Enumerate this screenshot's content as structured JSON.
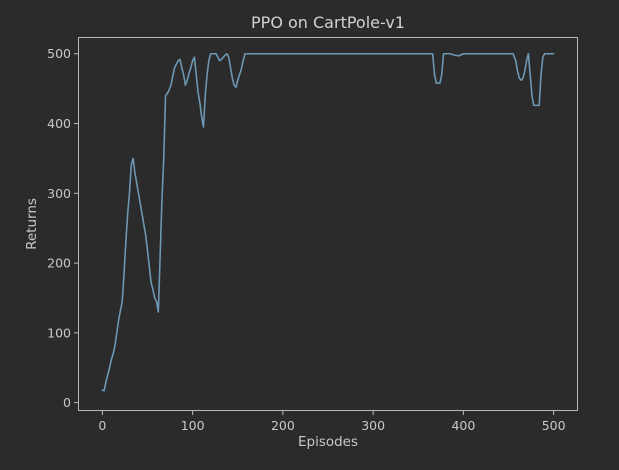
{
  "colors": {
    "background": "#2b2b2b",
    "plot_background": "#2b2b2b",
    "axes_frame": "#b9b9b9",
    "text": "#c8c8c8",
    "series_line": "#6d98b3"
  },
  "chart_data": {
    "type": "line",
    "title": "PPO on CartPole-v1",
    "xlabel": "Episodes",
    "ylabel": "Returns",
    "xlim": [
      -27,
      527
    ],
    "ylim": [
      -12,
      524
    ],
    "xticks": [
      0,
      100,
      200,
      300,
      400,
      500
    ],
    "yticks": [
      0,
      100,
      200,
      300,
      400,
      500
    ],
    "grid": false,
    "legend": "none",
    "series": [
      {
        "x": [
          0,
          2,
          4,
          6,
          8,
          10,
          12,
          14,
          16,
          18,
          20,
          22,
          24,
          26,
          28,
          30,
          32,
          34,
          36,
          38,
          40,
          42,
          44,
          46,
          48,
          50,
          52,
          54,
          56,
          58,
          60,
          62,
          64,
          66,
          68,
          70,
          72,
          74,
          76,
          78,
          80,
          82,
          84,
          86,
          88,
          90,
          92,
          94,
          96,
          98,
          100,
          102,
          104,
          106,
          108,
          110,
          112,
          114,
          116,
          118,
          120,
          122,
          124,
          126,
          128,
          130,
          132,
          134,
          136,
          138,
          140,
          142,
          144,
          146,
          148,
          150,
          152,
          154,
          156,
          158,
          160,
          162,
          164,
          166,
          168,
          170,
          200,
          250,
          300,
          350,
          366,
          368,
          370,
          372,
          374,
          376,
          378,
          380,
          382,
          385,
          390,
          395,
          400,
          420,
          440,
          455,
          458,
          460,
          462,
          464,
          466,
          468,
          470,
          472,
          474,
          476,
          478,
          480,
          482,
          484,
          486,
          488,
          490,
          495,
          500
        ],
        "values": [
          18,
          17,
          30,
          40,
          50,
          62,
          70,
          82,
          100,
          118,
          132,
          145,
          185,
          230,
          270,
          300,
          340,
          350,
          330,
          315,
          300,
          285,
          270,
          255,
          240,
          218,
          195,
          172,
          162,
          150,
          145,
          130,
          210,
          290,
          350,
          440,
          443,
          448,
          455,
          468,
          480,
          485,
          490,
          492,
          480,
          470,
          455,
          462,
          472,
          480,
          490,
          495,
          470,
          445,
          430,
          410,
          395,
          440,
          470,
          490,
          500,
          500,
          500,
          500,
          495,
          490,
          492,
          495,
          498,
          500,
          495,
          480,
          465,
          455,
          452,
          462,
          470,
          478,
          490,
          500,
          500,
          500,
          500,
          500,
          500,
          500,
          500,
          500,
          500,
          500,
          500,
          470,
          458,
          458,
          458,
          470,
          500,
          500,
          500,
          500,
          498,
          497,
          500,
          500,
          500,
          500,
          490,
          475,
          465,
          462,
          465,
          475,
          490,
          500,
          470,
          440,
          426,
          426,
          426,
          426,
          470,
          495,
          500,
          500,
          500
        ]
      }
    ]
  }
}
